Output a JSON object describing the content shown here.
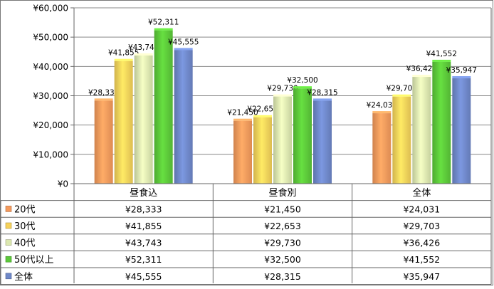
{
  "chart_data": {
    "type": "bar",
    "categories": [
      "昼食込",
      "昼食別",
      "全体"
    ],
    "series": [
      {
        "name": "20代",
        "color": "#f59a5c",
        "values": [
          28333,
          21450,
          24031
        ]
      },
      {
        "name": "30代",
        "color": "#f6d25a",
        "values": [
          41855,
          22653,
          29703
        ]
      },
      {
        "name": "40代",
        "color": "#dce8b0",
        "values": [
          43743,
          29730,
          36426
        ]
      },
      {
        "name": "50代以上",
        "color": "#5cc83a",
        "values": [
          52311,
          32500,
          41552
        ]
      },
      {
        "name": "全体",
        "color": "#6f88c9",
        "values": [
          45555,
          28315,
          35947
        ]
      }
    ],
    "ylim": [
      0,
      60000
    ],
    "yticks": [
      0,
      10000,
      20000,
      30000,
      40000,
      50000,
      60000
    ],
    "ytick_labels": [
      "¥0",
      "¥10,000",
      "¥20,000",
      "¥30,000",
      "¥40,000",
      "¥50,000",
      "¥60,000"
    ],
    "data_labels": [
      [
        "¥28,333",
        "¥21,450",
        "¥24,031"
      ],
      [
        "¥41,855",
        "¥22,653",
        "¥29,703"
      ],
      [
        "¥43,743",
        "¥29,730",
        "¥36,426"
      ],
      [
        "¥52,311",
        "¥32,500",
        "¥41,552"
      ],
      [
        "¥45,555",
        "¥28,315",
        "¥35,947"
      ]
    ],
    "title": "",
    "xlabel": "",
    "ylabel": "",
    "legend": "data-table"
  }
}
